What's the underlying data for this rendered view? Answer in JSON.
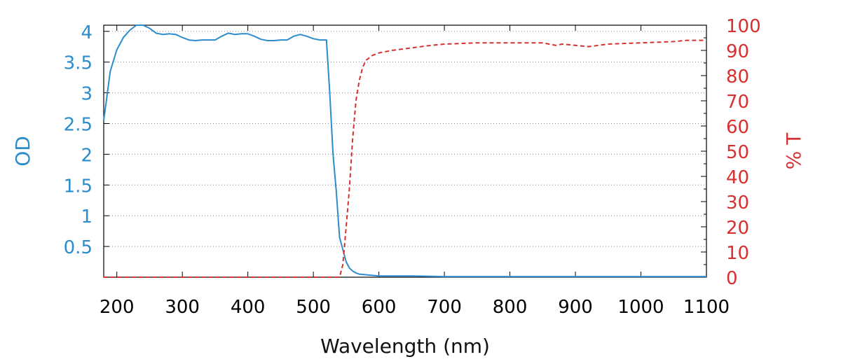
{
  "chart_data": {
    "type": "line",
    "xlabel": "Wavelength (nm)",
    "ylabel_left": "OD",
    "ylabel_right": "% T",
    "xlim": [
      180,
      1100
    ],
    "ylim_left": [
      0,
      4.1
    ],
    "ylim_right": [
      0,
      100
    ],
    "x_ticks": [
      "200",
      "300",
      "400",
      "500",
      "600",
      "700",
      "800",
      "900",
      "1000",
      "1100"
    ],
    "y_left_ticks": [
      "0.5",
      "1",
      "1.5",
      "2",
      "2.5",
      "3",
      "3.5",
      "4"
    ],
    "y_right_ticks": [
      "0",
      "10",
      "20",
      "30",
      "40",
      "50",
      "60",
      "70",
      "80",
      "90",
      "100"
    ],
    "grid": true,
    "colors": {
      "od": "#2c8ccc",
      "transmission": "#d63030"
    },
    "series": [
      {
        "axis": "left",
        "style": "solid",
        "x": [
          180,
          190,
          200,
          210,
          220,
          230,
          240,
          250,
          260,
          270,
          280,
          290,
          300,
          310,
          320,
          330,
          340,
          350,
          360,
          370,
          380,
          390,
          400,
          410,
          420,
          430,
          440,
          450,
          460,
          470,
          480,
          490,
          500,
          510,
          520,
          525,
          530,
          535,
          540,
          545,
          550,
          555,
          560,
          565,
          570,
          580,
          590,
          600,
          650,
          700,
          800,
          900,
          1000,
          1100
        ],
        "y": [
          2.55,
          3.35,
          3.7,
          3.9,
          4.02,
          4.1,
          4.1,
          4.05,
          3.97,
          3.95,
          3.96,
          3.95,
          3.9,
          3.86,
          3.85,
          3.86,
          3.86,
          3.86,
          3.92,
          3.97,
          3.95,
          3.96,
          3.96,
          3.92,
          3.87,
          3.85,
          3.85,
          3.86,
          3.86,
          3.92,
          3.95,
          3.92,
          3.88,
          3.86,
          3.86,
          3.0,
          2.0,
          1.4,
          0.65,
          0.45,
          0.25,
          0.15,
          0.1,
          0.07,
          0.05,
          0.04,
          0.03,
          0.02,
          0.02,
          0.01,
          0.01,
          0.01,
          0.01,
          0.01
        ]
      },
      {
        "axis": "right",
        "style": "dashed",
        "x": [
          180,
          540,
          545,
          550,
          555,
          560,
          565,
          570,
          575,
          580,
          590,
          600,
          620,
          650,
          680,
          700,
          750,
          800,
          850,
          870,
          880,
          900,
          920,
          950,
          1000,
          1050,
          1070,
          1100
        ],
        "y": [
          0,
          0,
          5,
          20,
          35,
          55,
          70,
          78,
          83,
          86,
          88,
          89,
          90,
          91,
          92,
          92.5,
          93,
          93,
          93,
          92,
          92.5,
          92,
          91.5,
          92.5,
          93,
          93.5,
          94,
          94
        ]
      }
    ]
  }
}
